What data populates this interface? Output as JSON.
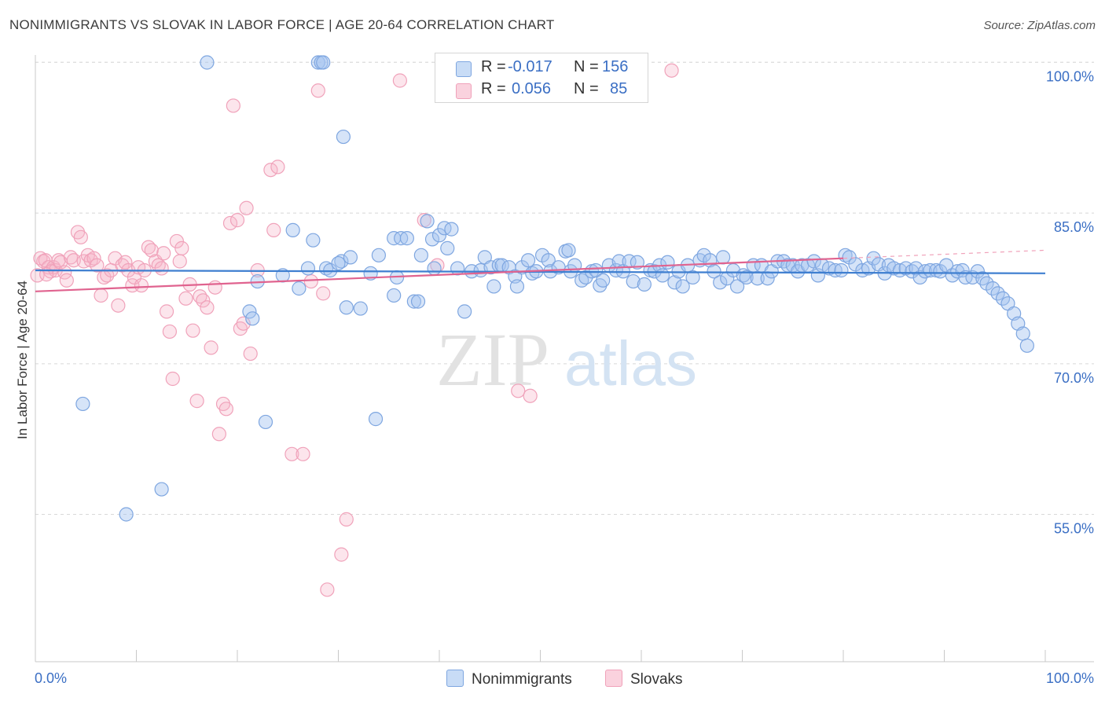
{
  "title": "NONIMMIGRANTS VS SLOVAK IN LABOR FORCE | AGE 20-64 CORRELATION CHART",
  "source": "Source: ZipAtlas.com",
  "legend_stats": {
    "rows": [
      {
        "r_label": "R = ",
        "r_value": "-0.017",
        "n_label": "N = ",
        "n_value": "156"
      },
      {
        "r_label": "R = ",
        "r_value": "0.056",
        "n_label": "N = ",
        "n_value": "85"
      }
    ]
  },
  "bottom_legend": [
    "Nonimmigrants",
    "Slovaks"
  ],
  "watermark": {
    "zip": "ZIP",
    "atlas": "atlas"
  },
  "colors": {
    "blue_fill": "rgba(164,196,240,0.45)",
    "blue_stroke": "#7ea6e0",
    "blue_line": "#3f7fd0",
    "pink_fill": "rgba(246,180,200,0.35)",
    "pink_stroke": "#f0a2ba",
    "pink_line": "#e0638f",
    "axis_text": "#3b6fc4",
    "grid": "#d8d8d8"
  },
  "chart_data": {
    "type": "scatter",
    "title": "NONIMMIGRANTS VS SLOVAK IN LABOR FORCE | AGE 20-64 CORRELATION CHART",
    "xlabel": "",
    "ylabel": "In Labor Force | Age 20-64",
    "xlim": [
      0,
      100
    ],
    "ylim": [
      40,
      102
    ],
    "x_tick_labels": [
      "0.0%",
      "100.0%"
    ],
    "y_ticks": [
      55,
      70,
      85,
      100
    ],
    "y_tick_labels": [
      "55.0%",
      "70.0%",
      "85.0%",
      "100.0%"
    ],
    "grid": "horizontal dashed",
    "legend": "bottom-center",
    "series": [
      {
        "name": "Nonimmigrants",
        "r": -0.017,
        "n": 156,
        "trend": [
          [
            0,
            79.3
          ],
          [
            100,
            79.0
          ]
        ],
        "points": [
          [
            4.7,
            66.0
          ],
          [
            9.0,
            55.0
          ],
          [
            12.5,
            57.5
          ],
          [
            17.0,
            100.0
          ],
          [
            21.2,
            75.2
          ],
          [
            21.5,
            74.5
          ],
          [
            22.0,
            78.2
          ],
          [
            22.8,
            64.2
          ],
          [
            24.5,
            78.8
          ],
          [
            25.5,
            83.3
          ],
          [
            26.1,
            77.5
          ],
          [
            27.0,
            79.5
          ],
          [
            27.5,
            82.3
          ],
          [
            28.0,
            100.0
          ],
          [
            28.3,
            100.0
          ],
          [
            28.5,
            100.0
          ],
          [
            28.8,
            79.5
          ],
          [
            29.2,
            79.3
          ],
          [
            30.3,
            80.2
          ],
          [
            30.8,
            75.6
          ],
          [
            31.2,
            80.6
          ],
          [
            30.0,
            80.0
          ],
          [
            30.5,
            92.6
          ],
          [
            32.2,
            75.5
          ],
          [
            33.2,
            79.0
          ],
          [
            33.7,
            64.5
          ],
          [
            34.0,
            80.8
          ],
          [
            35.5,
            76.8
          ],
          [
            35.5,
            82.5
          ],
          [
            35.8,
            78.6
          ],
          [
            36.2,
            82.5
          ],
          [
            36.8,
            82.5
          ],
          [
            37.5,
            76.2
          ],
          [
            37.9,
            76.2
          ],
          [
            38.2,
            80.8
          ],
          [
            38.8,
            84.2
          ],
          [
            39.3,
            82.4
          ],
          [
            39.5,
            79.5
          ],
          [
            40.0,
            82.8
          ],
          [
            40.5,
            83.5
          ],
          [
            40.8,
            81.5
          ],
          [
            41.2,
            83.4
          ],
          [
            41.8,
            79.5
          ],
          [
            42.5,
            75.2
          ],
          [
            43.2,
            79.2
          ],
          [
            44.1,
            79.3
          ],
          [
            44.5,
            80.6
          ],
          [
            45.1,
            79.6
          ],
          [
            45.4,
            77.7
          ],
          [
            45.9,
            79.8
          ],
          [
            46.2,
            79.8
          ],
          [
            46.9,
            79.6
          ],
          [
            47.5,
            78.7
          ],
          [
            47.7,
            77.7
          ],
          [
            48.2,
            79.6
          ],
          [
            48.8,
            80.3
          ],
          [
            49.2,
            79.0
          ],
          [
            49.6,
            79.2
          ],
          [
            50.2,
            80.8
          ],
          [
            50.8,
            80.3
          ],
          [
            51.0,
            79.2
          ],
          [
            51.8,
            79.6
          ],
          [
            52.5,
            81.2
          ],
          [
            52.8,
            81.3
          ],
          [
            53.0,
            79.2
          ],
          [
            53.4,
            79.8
          ],
          [
            54.1,
            78.3
          ],
          [
            54.5,
            78.6
          ],
          [
            55.1,
            79.2
          ],
          [
            55.5,
            79.3
          ],
          [
            55.9,
            77.8
          ],
          [
            56.2,
            78.3
          ],
          [
            56.8,
            79.8
          ],
          [
            57.5,
            79.3
          ],
          [
            57.8,
            80.2
          ],
          [
            58.2,
            79.2
          ],
          [
            58.8,
            80.2
          ],
          [
            59.2,
            78.2
          ],
          [
            59.6,
            80.1
          ],
          [
            60.3,
            77.9
          ],
          [
            60.9,
            79.3
          ],
          [
            61.3,
            79.2
          ],
          [
            61.8,
            79.8
          ],
          [
            62.1,
            78.8
          ],
          [
            62.6,
            80.1
          ],
          [
            63.3,
            78.1
          ],
          [
            63.7,
            79.2
          ],
          [
            64.1,
            77.7
          ],
          [
            64.6,
            79.8
          ],
          [
            65.1,
            78.6
          ],
          [
            65.8,
            80.3
          ],
          [
            66.2,
            80.8
          ],
          [
            66.8,
            80.3
          ],
          [
            67.2,
            79.2
          ],
          [
            67.8,
            78.1
          ],
          [
            68.1,
            80.6
          ],
          [
            68.5,
            78.5
          ],
          [
            69.1,
            79.3
          ],
          [
            69.5,
            77.7
          ],
          [
            70.1,
            78.8
          ],
          [
            70.4,
            78.6
          ],
          [
            71.1,
            79.8
          ],
          [
            71.5,
            78.5
          ],
          [
            71.9,
            79.8
          ],
          [
            72.5,
            78.5
          ],
          [
            72.9,
            79.2
          ],
          [
            73.5,
            80.2
          ],
          [
            74.1,
            80.2
          ],
          [
            74.5,
            79.8
          ],
          [
            75.0,
            79.8
          ],
          [
            75.5,
            79.2
          ],
          [
            75.9,
            79.8
          ],
          [
            76.5,
            79.8
          ],
          [
            77.1,
            80.2
          ],
          [
            77.5,
            78.8
          ],
          [
            77.9,
            79.8
          ],
          [
            78.6,
            79.5
          ],
          [
            79.2,
            79.3
          ],
          [
            79.8,
            79.3
          ],
          [
            80.2,
            80.8
          ],
          [
            80.6,
            80.6
          ],
          [
            81.2,
            79.9
          ],
          [
            81.9,
            79.3
          ],
          [
            82.5,
            79.5
          ],
          [
            83.0,
            80.5
          ],
          [
            83.5,
            79.9
          ],
          [
            84.1,
            79.0
          ],
          [
            84.5,
            79.8
          ],
          [
            85.0,
            79.5
          ],
          [
            85.6,
            79.3
          ],
          [
            86.2,
            79.5
          ],
          [
            86.8,
            79.2
          ],
          [
            87.2,
            79.5
          ],
          [
            87.6,
            78.6
          ],
          [
            88.1,
            79.2
          ],
          [
            88.6,
            79.3
          ],
          [
            89.2,
            79.3
          ],
          [
            89.6,
            79.2
          ],
          [
            90.2,
            79.8
          ],
          [
            90.8,
            78.8
          ],
          [
            91.3,
            79.2
          ],
          [
            91.8,
            79.3
          ],
          [
            92.1,
            78.6
          ],
          [
            92.8,
            78.6
          ],
          [
            93.3,
            79.2
          ],
          [
            93.8,
            78.5
          ],
          [
            94.2,
            78.0
          ],
          [
            94.8,
            77.5
          ],
          [
            95.3,
            77.0
          ],
          [
            95.8,
            76.5
          ],
          [
            96.3,
            76.0
          ],
          [
            96.9,
            75.0
          ],
          [
            97.3,
            74.0
          ],
          [
            97.8,
            73.0
          ],
          [
            98.2,
            71.8
          ]
        ]
      },
      {
        "name": "Slovaks",
        "r": 0.056,
        "n": 85,
        "trend": [
          [
            0,
            77.2
          ],
          [
            80,
            80.5
          ]
        ],
        "trend_dashed_to": [
          100,
          81.3
        ],
        "points": [
          [
            0.2,
            78.8
          ],
          [
            0.5,
            80.5
          ],
          [
            0.8,
            80.2
          ],
          [
            1.0,
            80.3
          ],
          [
            1.3,
            79.6
          ],
          [
            1.5,
            79.2
          ],
          [
            1.8,
            79.6
          ],
          [
            2.0,
            79.3
          ],
          [
            2.3,
            80.3
          ],
          [
            2.5,
            80.1
          ],
          [
            2.9,
            79.1
          ],
          [
            3.1,
            78.3
          ],
          [
            3.5,
            80.6
          ],
          [
            3.8,
            80.3
          ],
          [
            4.2,
            83.1
          ],
          [
            4.5,
            82.6
          ],
          [
            4.8,
            80.2
          ],
          [
            5.2,
            80.8
          ],
          [
            5.5,
            80.3
          ],
          [
            5.8,
            80.5
          ],
          [
            6.1,
            79.8
          ],
          [
            6.5,
            76.8
          ],
          [
            6.8,
            78.6
          ],
          [
            7.1,
            78.8
          ],
          [
            7.5,
            79.3
          ],
          [
            7.9,
            80.5
          ],
          [
            8.2,
            75.8
          ],
          [
            8.6,
            79.8
          ],
          [
            8.9,
            80.1
          ],
          [
            9.2,
            79.3
          ],
          [
            9.6,
            77.8
          ],
          [
            9.8,
            78.6
          ],
          [
            10.2,
            79.6
          ],
          [
            10.5,
            77.8
          ],
          [
            10.8,
            79.3
          ],
          [
            11.2,
            81.6
          ],
          [
            11.5,
            81.3
          ],
          [
            11.9,
            80.2
          ],
          [
            12.2,
            79.8
          ],
          [
            12.5,
            79.5
          ],
          [
            12.7,
            81.0
          ],
          [
            13.0,
            75.2
          ],
          [
            13.3,
            73.2
          ],
          [
            13.6,
            68.5
          ],
          [
            14.0,
            82.2
          ],
          [
            14.3,
            80.2
          ],
          [
            14.5,
            81.5
          ],
          [
            14.9,
            76.5
          ],
          [
            15.3,
            77.9
          ],
          [
            15.6,
            73.3
          ],
          [
            16.0,
            66.3
          ],
          [
            16.3,
            76.7
          ],
          [
            16.6,
            76.3
          ],
          [
            17.0,
            75.6
          ],
          [
            17.4,
            71.6
          ],
          [
            17.8,
            77.6
          ],
          [
            18.2,
            63.0
          ],
          [
            18.6,
            66.0
          ],
          [
            18.9,
            65.5
          ],
          [
            19.3,
            84.0
          ],
          [
            19.6,
            95.7
          ],
          [
            20.0,
            84.3
          ],
          [
            20.3,
            73.5
          ],
          [
            20.6,
            74.0
          ],
          [
            20.9,
            85.5
          ],
          [
            21.3,
            71.0
          ],
          [
            22.0,
            79.3
          ],
          [
            23.3,
            89.3
          ],
          [
            23.6,
            83.3
          ],
          [
            24.0,
            89.6
          ],
          [
            25.4,
            61.0
          ],
          [
            26.5,
            61.0
          ],
          [
            27.3,
            78.2
          ],
          [
            28.0,
            97.2
          ],
          [
            28.5,
            77.0
          ],
          [
            28.9,
            47.5
          ],
          [
            30.3,
            51.0
          ],
          [
            30.8,
            54.5
          ],
          [
            36.1,
            98.2
          ],
          [
            38.5,
            84.3
          ],
          [
            47.8,
            67.3
          ],
          [
            49.0,
            66.8
          ],
          [
            63.0,
            99.2
          ],
          [
            39.8,
            79.8
          ],
          [
            1.1,
            78.9
          ]
        ]
      }
    ]
  }
}
